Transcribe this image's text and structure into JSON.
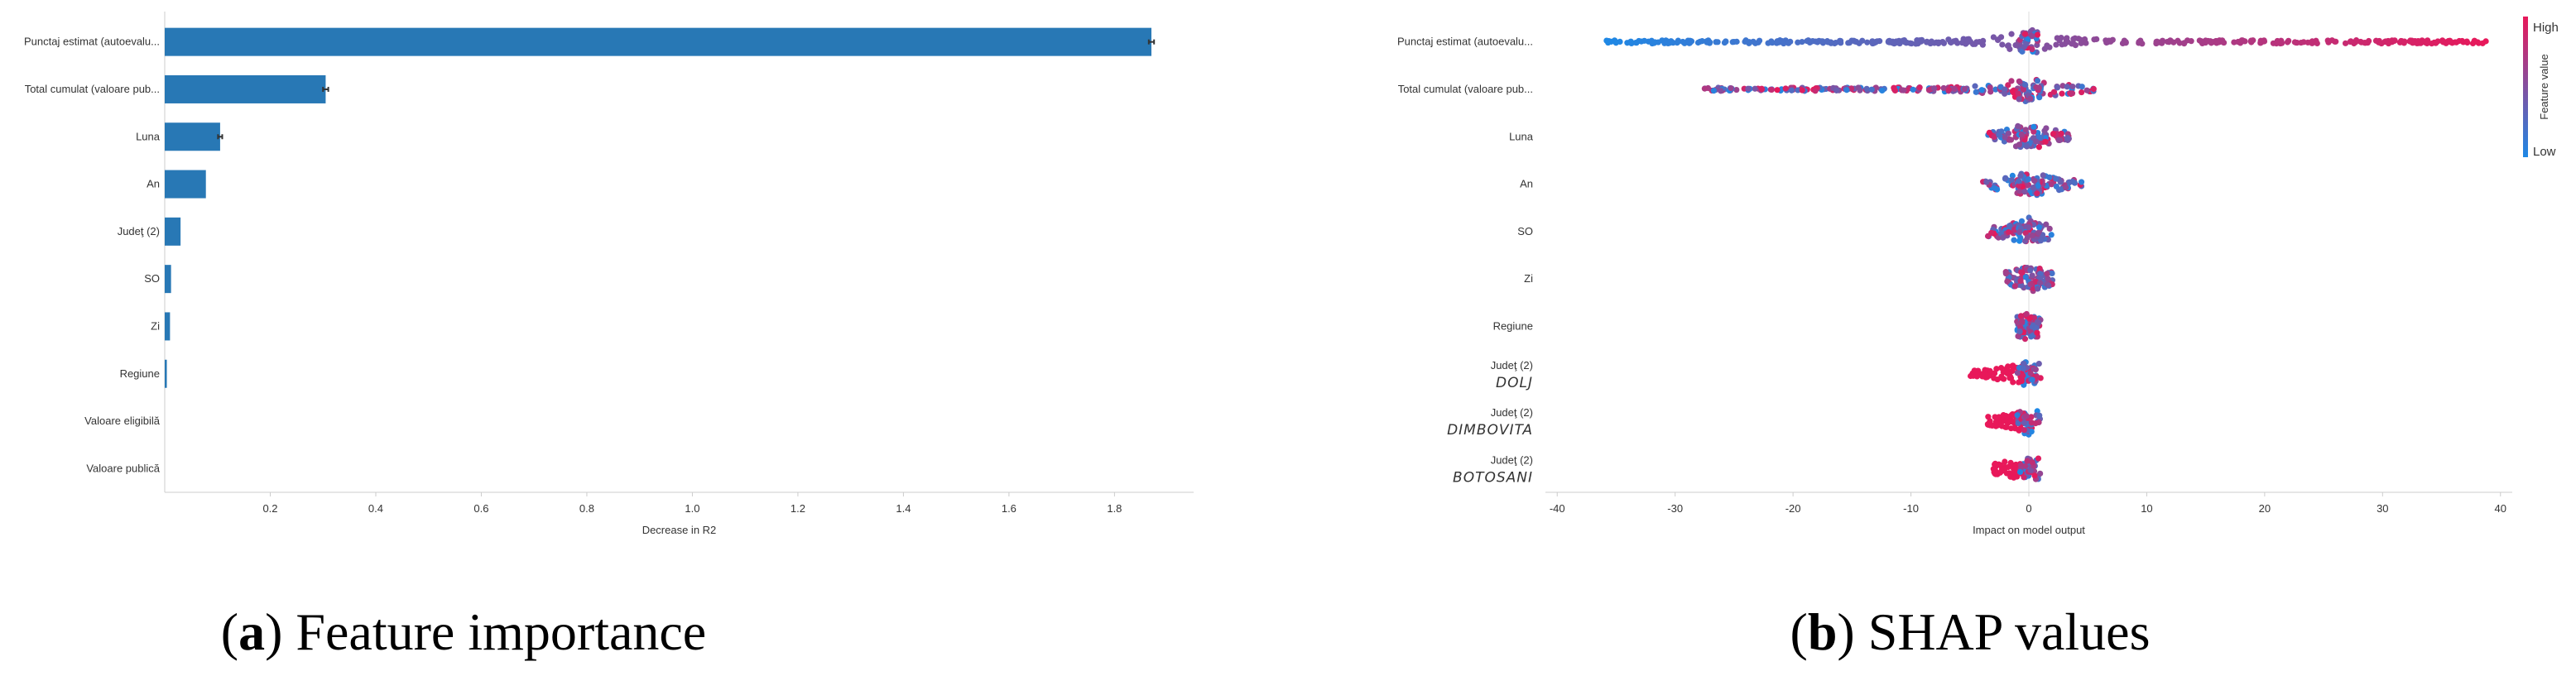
{
  "chart_data": [
    {
      "type": "bar",
      "orientation": "horizontal",
      "xlabel": "Decrease in R2",
      "categories": [
        "Punctaj estimat (autoevalu...",
        "Total cumulat (valoare pub...",
        "Luna",
        "An",
        "Judeţ (2)",
        "SO",
        "Zi",
        "Regiune",
        "Valoare eligibilă",
        "Valoare publică"
      ],
      "values": [
        1.87,
        0.305,
        0.105,
        0.078,
        0.03,
        0.012,
        0.01,
        0.004,
        0.0,
        0.0
      ],
      "errors": [
        0.005,
        0.005,
        0.004,
        0,
        0,
        0,
        0,
        0,
        0,
        0
      ],
      "xlim": [
        0,
        1.95
      ],
      "xticks": [
        "0.2",
        "0.4",
        "0.6",
        "0.8",
        "1.0",
        "1.2",
        "1.4",
        "1.6",
        "1.8"
      ],
      "bar_color": "#2878b5",
      "grid": false
    },
    {
      "type": "scatter",
      "subtype": "shap-beeswarm",
      "xlabel": "Impact on model output",
      "categories": [
        {
          "label": "Punctaj estimat (autoevalu...",
          "sub": ""
        },
        {
          "label": "Total cumulat (valoare pub...",
          "sub": ""
        },
        {
          "label": "Luna",
          "sub": ""
        },
        {
          "label": "An",
          "sub": ""
        },
        {
          "label": "SO",
          "sub": ""
        },
        {
          "label": "Zi",
          "sub": ""
        },
        {
          "label": "Regiune",
          "sub": ""
        },
        {
          "label": "Judeţ (2)",
          "sub": "DOLJ"
        },
        {
          "label": "Judeţ (2)",
          "sub": "DIMBOVITA"
        },
        {
          "label": "Judeţ (2)",
          "sub": "BOTOSANI"
        }
      ],
      "value_ranges": [
        [
          -36,
          39
        ],
        [
          -27.5,
          5.5
        ],
        [
          -3.5,
          3.5
        ],
        [
          -4,
          4.5
        ],
        [
          -3.5,
          2
        ],
        [
          -2,
          2
        ],
        [
          -1,
          1
        ],
        [
          -5,
          0
        ],
        [
          -3.5,
          0
        ],
        [
          -3,
          0
        ]
      ],
      "xlim": [
        -41,
        41
      ],
      "xticks": [
        "-40",
        "-30",
        "-20",
        "-10",
        "0",
        "10",
        "20",
        "30",
        "40"
      ],
      "colorbar": {
        "title": "Feature value",
        "high": "High",
        "low": "Low",
        "high_color": "#e8185a",
        "low_color": "#1e88e5"
      },
      "grid": false
    }
  ],
  "captions": {
    "a": {
      "letter": "a",
      "text": "Feature importance"
    },
    "b": {
      "letter": "b",
      "text": "SHAP values"
    }
  }
}
